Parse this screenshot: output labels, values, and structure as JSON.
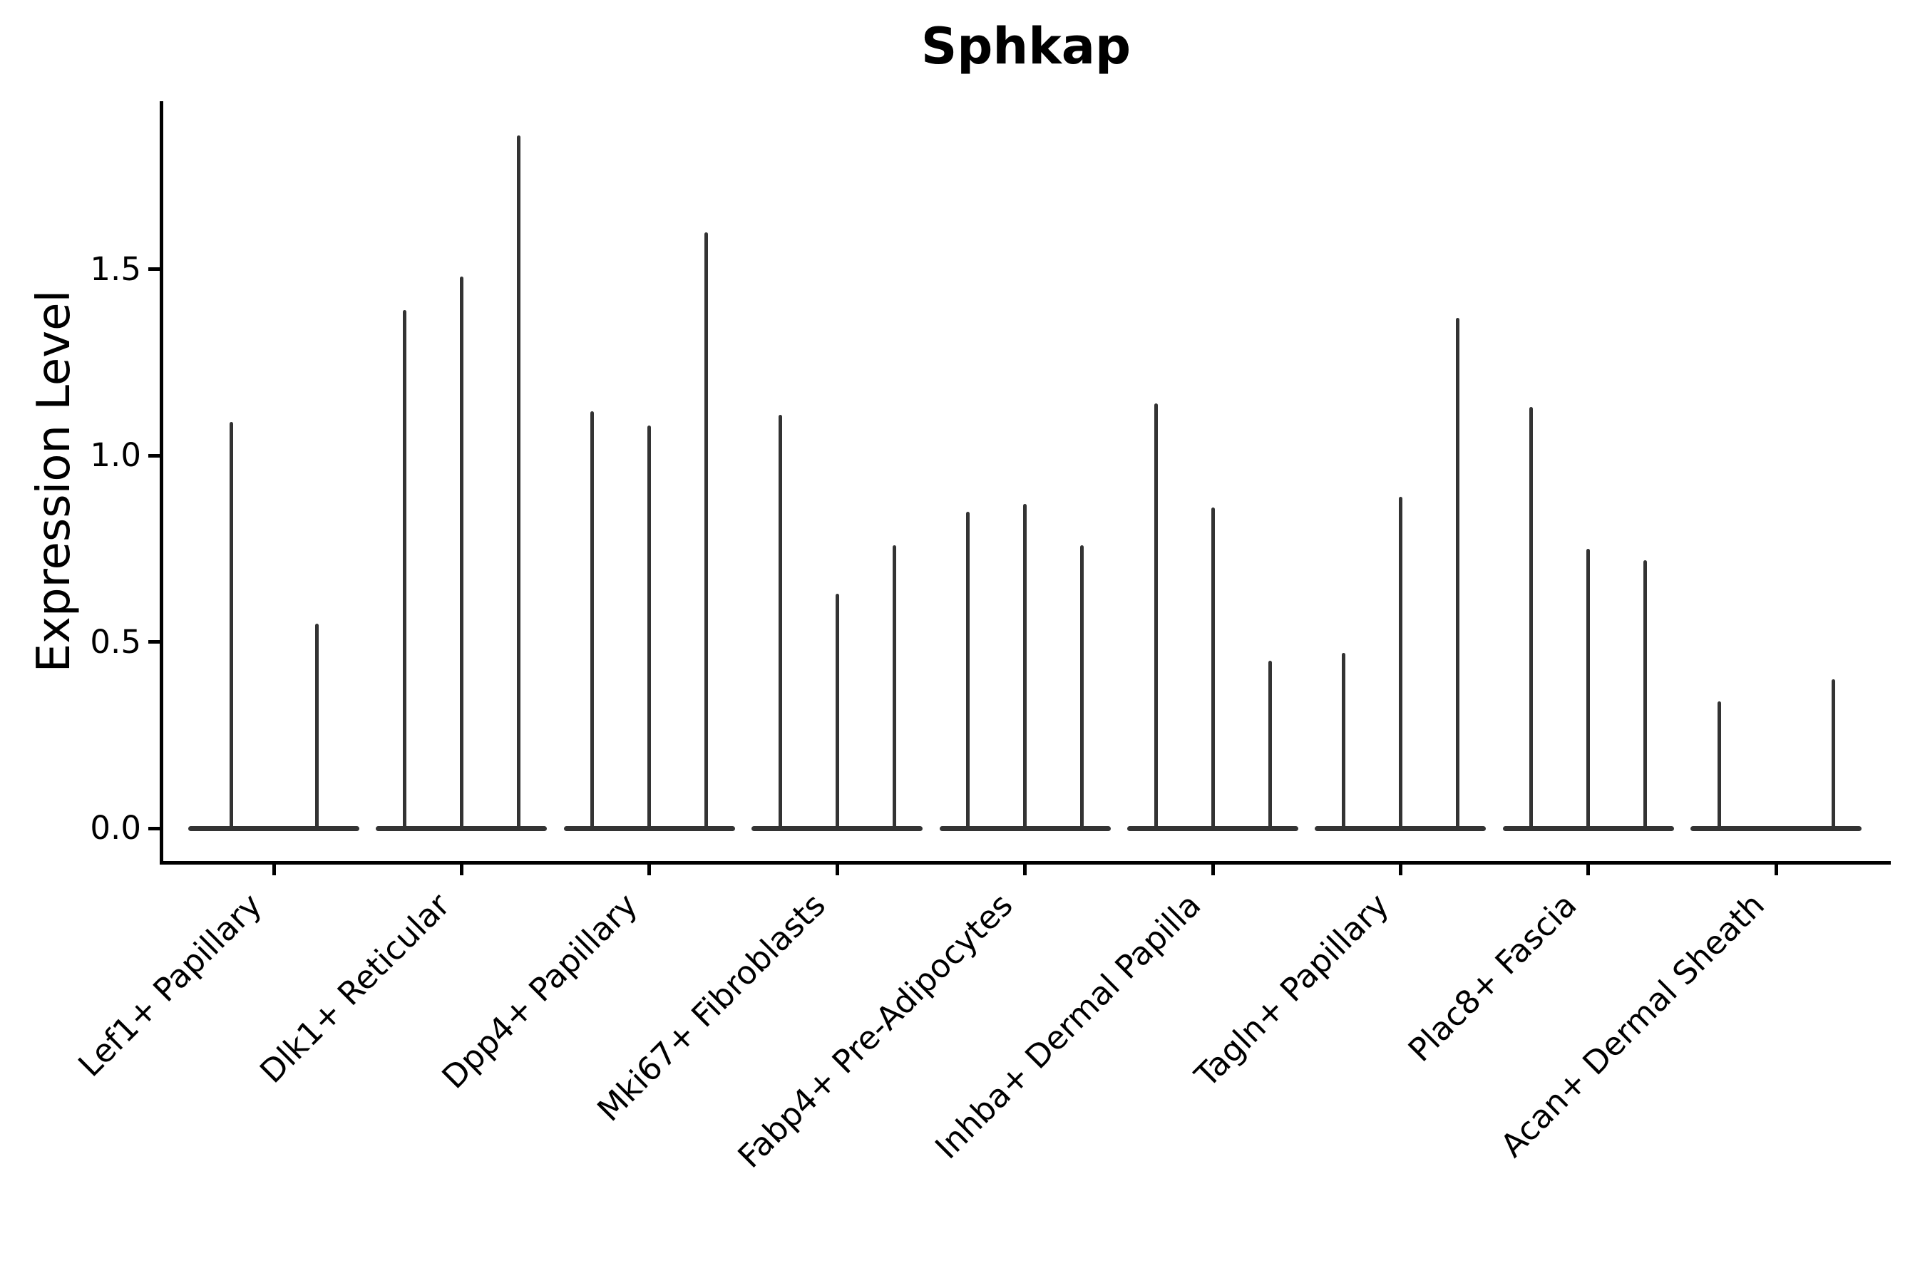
{
  "title": "Sphkap",
  "y_axis": {
    "label": "Expression Level",
    "tick_labels": [
      "0.0",
      "0.5",
      "1.0",
      "1.5"
    ],
    "tick_values": [
      0,
      0.5,
      1.0,
      1.5
    ]
  },
  "colors": {
    "violin_line": "#333333",
    "axis": "#000000",
    "background": "#ffffff",
    "text": "#000000"
  },
  "chart_data": {
    "type": "violin",
    "title": "Sphkap",
    "xlabel": "",
    "ylabel": "Expression Level",
    "ylim": [
      0,
      1.95
    ],
    "yticks": [
      0,
      0.5,
      1.0,
      1.5
    ],
    "grid": false,
    "legend": "none",
    "description": "Needle-thin violins (expression mostly zero with narrow spikes to the max); each cell-type category contains 2-3 violins sharing a flat base at 0. Values are the spike maxima in Expression Level units.",
    "categories": [
      "Lef1+ Papillary",
      "Dlk1+ Reticular",
      "Dpp4+ Papillary",
      "Mki67+ Fibroblasts",
      "Fabp4+ Pre-Adipocytes",
      "Inhba+ Dermal Papilla",
      "Tagln+ Papillary",
      "Plac8+ Fascia",
      "Acan+ Dermal Sheath"
    ],
    "groups": [
      {
        "label": "Lef1+ Papillary",
        "violin_maxima": [
          1.09,
          0.55
        ]
      },
      {
        "label": "Dlk1+ Reticular",
        "violin_maxima": [
          1.39,
          1.48,
          1.86
        ]
      },
      {
        "label": "Dpp4+ Papillary",
        "violin_maxima": [
          1.12,
          1.08,
          1.6
        ]
      },
      {
        "label": "Mki67+ Fibroblasts",
        "violin_maxima": [
          1.11,
          0.63,
          0.76
        ]
      },
      {
        "label": "Fabp4+ Pre-Adipocytes",
        "violin_maxima": [
          0.85,
          0.87,
          0.76
        ]
      },
      {
        "label": "Inhba+ Dermal Papilla",
        "violin_maxima": [
          1.14,
          0.86,
          0.45
        ]
      },
      {
        "label": "Tagln+ Papillary",
        "violin_maxima": [
          0.47,
          0.89,
          1.37
        ]
      },
      {
        "label": "Plac8+ Fascia",
        "violin_maxima": [
          1.13,
          0.75,
          0.72
        ]
      },
      {
        "label": "Acan+ Dermal Sheath",
        "violin_maxima": [
          0.34,
          0.0,
          0.4
        ]
      }
    ]
  }
}
